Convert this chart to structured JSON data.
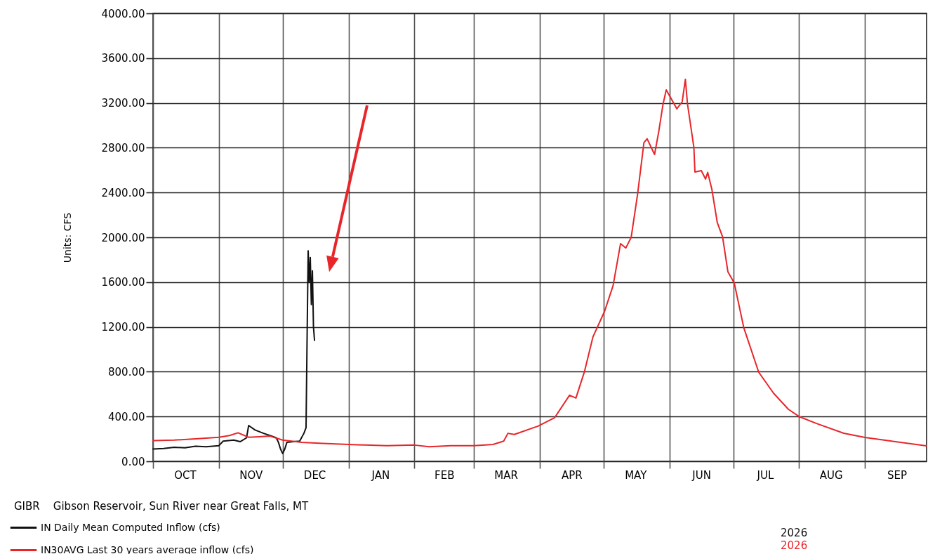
{
  "chart_data": {
    "type": "line",
    "title": "GIBR    Gibson Reservoir, Sun River near Great Falls, MT",
    "ylabel": "Units: CFS",
    "xlim": [
      "2025-10-01",
      "2026-09-30"
    ],
    "xticks": [
      {
        "value": "2025-10-01",
        "label": null
      },
      {
        "value": "2025-10-16",
        "label": "OCT"
      },
      {
        "value": "2025-11-01",
        "label": null
      },
      {
        "value": "2025-11-16",
        "label": "NOV"
      },
      {
        "value": "2025-12-01",
        "label": null
      },
      {
        "value": "2025-12-16",
        "label": "DEC"
      },
      {
        "value": "2026-01-01",
        "label": null
      },
      {
        "value": "2026-01-16",
        "label": "JAN"
      },
      {
        "value": "2026-02-01",
        "label": null
      },
      {
        "value": "2026-02-15",
        "label": "FEB"
      },
      {
        "value": "2026-03-01",
        "label": null
      },
      {
        "value": "2026-03-16",
        "label": "MAR"
      },
      {
        "value": "2026-04-01",
        "label": null
      },
      {
        "value": "2026-04-16",
        "label": "APR"
      },
      {
        "value": "2026-05-01",
        "label": null
      },
      {
        "value": "2026-05-16",
        "label": "MAY"
      },
      {
        "value": "2026-06-01",
        "label": null
      },
      {
        "value": "2026-06-16",
        "label": "JUN"
      },
      {
        "value": "2026-07-01",
        "label": null
      },
      {
        "value": "2026-07-16",
        "label": "JUL"
      },
      {
        "value": "2026-08-01",
        "label": null
      },
      {
        "value": "2026-08-16",
        "label": "AUG"
      },
      {
        "value": "2026-09-01",
        "label": null
      },
      {
        "value": "2026-09-16",
        "label": "SEP"
      }
    ],
    "ylim": [
      0,
      4000
    ],
    "yticks": [
      {
        "value": 0,
        "label": "0.00"
      },
      {
        "value": 400,
        "label": "400.00"
      },
      {
        "value": 800,
        "label": "800.00"
      },
      {
        "value": 1200,
        "label": "1200.00"
      },
      {
        "value": 1600,
        "label": "1600.00"
      },
      {
        "value": 2000,
        "label": "2000.00"
      },
      {
        "value": 2400,
        "label": "2400.00"
      },
      {
        "value": 2800,
        "label": "2800.00"
      },
      {
        "value": 3200,
        "label": "3200.00"
      },
      {
        "value": 3600,
        "label": "3600.00"
      },
      {
        "value": 4000,
        "label": "4000.00"
      }
    ],
    "grid": true,
    "legend": "bottom left",
    "annotations": [
      "2026",
      "2026"
    ],
    "series": [
      {
        "name": "IN Daily Mean Computed Inflow (cfs)",
        "color": "#111111",
        "x": [
          "2025-10-01",
          "2025-10-06",
          "2025-10-11",
          "2025-10-16",
          "2025-10-21",
          "2025-10-26",
          "2025-11-01",
          "2025-11-03",
          "2025-11-08",
          "2025-11-11",
          "2025-11-14",
          "2025-11-15",
          "2025-11-18",
          "2025-11-22",
          "2025-11-25",
          "2025-11-28",
          "2025-11-29",
          "2025-11-30",
          "2025-12-01",
          "2025-12-02",
          "2025-12-03",
          "2025-12-06",
          "2025-12-09",
          "2025-12-11",
          "2025-12-12",
          "2025-12-12T12:00",
          "2025-12-13",
          "2025-12-13T12:00",
          "2025-12-14",
          "2025-12-14T12:00",
          "2025-12-15",
          "2025-12-15T12:00",
          "2025-12-16"
        ],
        "values": [
          110,
          115,
          125,
          120,
          135,
          130,
          140,
          180,
          190,
          175,
          210,
          320,
          280,
          250,
          230,
          210,
          170,
          110,
          70,
          110,
          170,
          175,
          180,
          250,
          300,
          1100,
          1880,
          1600,
          1820,
          1400,
          1700,
          1200,
          1080
        ]
      },
      {
        "name": "IN30AVG Last 30 years average inflow (cfs)",
        "color": "#e8262a",
        "x": [
          "2025-10-01",
          "2025-10-11",
          "2025-10-21",
          "2025-11-01",
          "2025-11-06",
          "2025-11-10",
          "2025-11-15",
          "2025-11-20",
          "2025-11-25",
          "2025-12-01",
          "2025-12-10",
          "2025-12-20",
          "2026-01-01",
          "2026-01-09",
          "2026-01-19",
          "2026-02-01",
          "2026-02-08",
          "2026-02-18",
          "2026-03-01",
          "2026-03-10",
          "2026-03-15",
          "2026-03-17",
          "2026-03-20",
          "2026-03-31",
          "2026-04-08",
          "2026-04-15",
          "2026-04-18",
          "2026-04-22",
          "2026-04-26",
          "2026-05-01T12:00",
          "2026-05-05T12:00",
          "2026-05-09",
          "2026-05-11T12:00",
          "2026-05-14",
          "2026-05-17",
          "2026-05-20",
          "2026-05-21T12:00",
          "2026-05-25",
          "2026-05-27",
          "2026-05-29",
          "2026-05-30T12:00",
          "2026-06-04T12:00",
          "2026-06-07",
          "2026-06-08T12:00",
          "2026-06-09T12:00",
          "2026-06-12T12:00",
          "2026-06-13",
          "2026-06-16",
          "2026-06-18",
          "2026-06-19",
          "2026-06-21",
          "2026-06-23T12:00",
          "2026-06-26",
          "2026-06-28T12:00",
          "2026-07-01T12:00",
          "2026-07-06",
          "2026-07-13",
          "2026-07-20",
          "2026-07-27",
          "2026-08-01",
          "2026-08-09",
          "2026-08-22",
          "2026-09-01",
          "2026-09-13",
          "2026-09-30"
        ],
        "values": [
          185,
          190,
          200,
          215,
          230,
          255,
          215,
          220,
          225,
          190,
          170,
          160,
          150,
          145,
          140,
          145,
          130,
          140,
          140,
          150,
          180,
          250,
          240,
          313,
          390,
          590,
          565,
          800,
          1110,
          1340,
          1570,
          1944,
          1905,
          2000,
          2383,
          2846,
          2880,
          2740,
          2947,
          3190,
          3317,
          3148,
          3210,
          3411,
          3190,
          2803,
          2583,
          2596,
          2520,
          2580,
          2426,
          2132,
          2006,
          1693,
          1593,
          1192,
          796,
          608,
          464,
          400,
          339,
          251,
          213,
          182,
          138
        ]
      }
    ]
  }
}
